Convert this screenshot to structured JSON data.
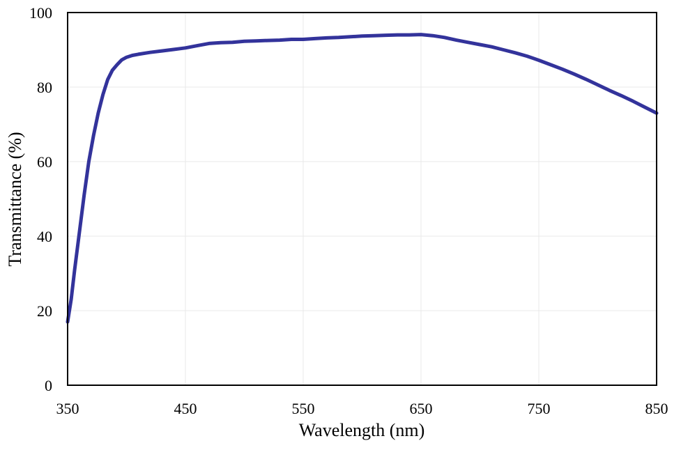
{
  "chart_data": {
    "type": "line",
    "title": "",
    "xlabel": "Wavelength (nm)",
    "ylabel": "Transmittance (%)",
    "xlim": [
      350,
      850
    ],
    "ylim": [
      0,
      100
    ],
    "x_ticks": [
      "350",
      "450",
      "550",
      "650",
      "750",
      "850"
    ],
    "y_ticks": [
      "0",
      "20",
      "40",
      "60",
      "80",
      "100"
    ],
    "grid": true,
    "legend": "none",
    "series": [
      {
        "color": "#33339b",
        "points": [
          [
            350,
            17
          ],
          [
            353,
            23
          ],
          [
            356,
            31
          ],
          [
            360,
            41
          ],
          [
            364,
            51
          ],
          [
            368,
            60
          ],
          [
            372,
            67
          ],
          [
            376,
            73
          ],
          [
            380,
            78
          ],
          [
            384,
            82
          ],
          [
            388,
            84.5
          ],
          [
            392,
            86
          ],
          [
            396,
            87.3
          ],
          [
            400,
            88
          ],
          [
            405,
            88.5
          ],
          [
            410,
            88.8
          ],
          [
            420,
            89.3
          ],
          [
            430,
            89.7
          ],
          [
            440,
            90.1
          ],
          [
            450,
            90.5
          ],
          [
            460,
            91.1
          ],
          [
            470,
            91.7
          ],
          [
            480,
            91.9
          ],
          [
            490,
            92.0
          ],
          [
            500,
            92.3
          ],
          [
            510,
            92.4
          ],
          [
            520,
            92.5
          ],
          [
            530,
            92.6
          ],
          [
            540,
            92.8
          ],
          [
            550,
            92.8
          ],
          [
            560,
            93.0
          ],
          [
            570,
            93.2
          ],
          [
            580,
            93.3
          ],
          [
            590,
            93.5
          ],
          [
            600,
            93.7
          ],
          [
            610,
            93.8
          ],
          [
            620,
            93.9
          ],
          [
            630,
            94.0
          ],
          [
            640,
            94.0
          ],
          [
            650,
            94.1
          ],
          [
            660,
            93.8
          ],
          [
            670,
            93.3
          ],
          [
            680,
            92.6
          ],
          [
            690,
            92.0
          ],
          [
            700,
            91.4
          ],
          [
            710,
            90.8
          ],
          [
            720,
            90.0
          ],
          [
            730,
            89.2
          ],
          [
            740,
            88.3
          ],
          [
            750,
            87.2
          ],
          [
            760,
            86.0
          ],
          [
            770,
            84.8
          ],
          [
            780,
            83.5
          ],
          [
            790,
            82.1
          ],
          [
            800,
            80.6
          ],
          [
            810,
            79.1
          ],
          [
            820,
            77.7
          ],
          [
            830,
            76.2
          ],
          [
            840,
            74.6
          ],
          [
            850,
            73.0
          ]
        ]
      }
    ]
  }
}
